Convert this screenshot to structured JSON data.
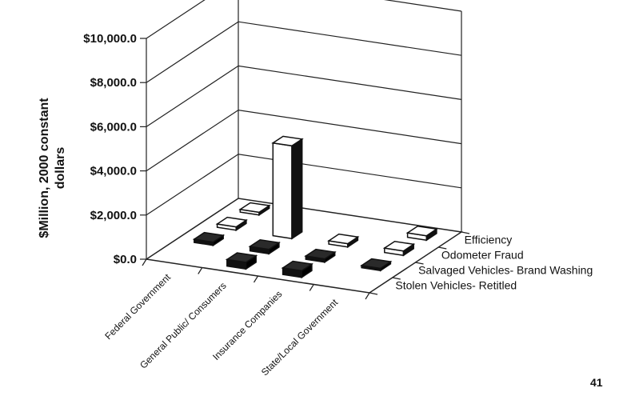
{
  "chart_data": {
    "type": "bar",
    "title": "",
    "ylabel": "$Million, 2000 constant dollars",
    "xlabel": "",
    "categories": [
      "Federal Government",
      "General Public/ Consumers",
      "Insurance Companies",
      "State/Local Government"
    ],
    "series": [
      {
        "name": "Efficiency",
        "values": [
          120,
          0,
          0,
          200
        ]
      },
      {
        "name": "Odometer Fraud",
        "values": [
          150,
          4200,
          150,
          200
        ]
      },
      {
        "name": "Salvaged Vehicles- Brand Washing",
        "values": [
          150,
          200,
          150,
          100
        ]
      },
      {
        "name": "Stolen Vehicles- Retitled",
        "values": [
          0,
          300,
          300,
          0
        ]
      }
    ],
    "y_ticks": [
      "$0.0",
      "$2,000.0",
      "$4,000.0",
      "$6,000.0",
      "$8,000.0",
      "$10,000.0"
    ],
    "ylim": [
      0,
      10000
    ],
    "grid": true,
    "legend": "right-depth-axis"
  },
  "page_number": "41"
}
